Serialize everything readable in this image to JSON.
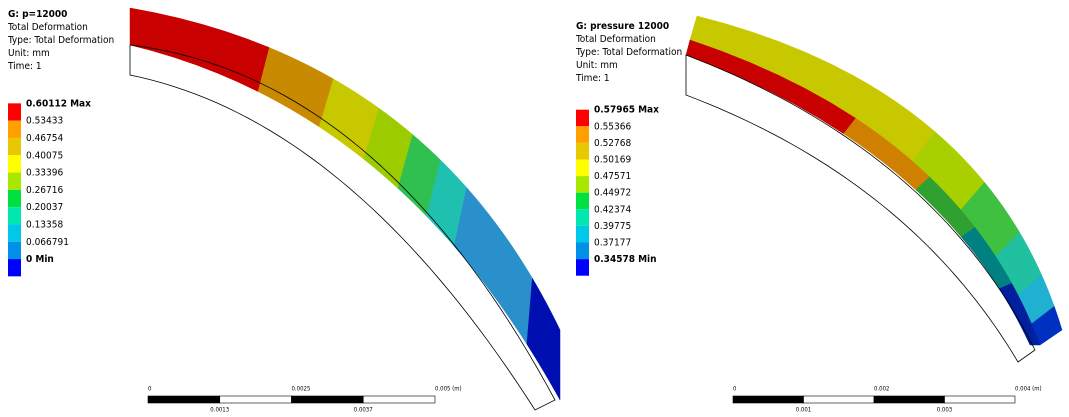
{
  "panels": [
    {
      "title": "G: p=12000",
      "lines": [
        "Total Deformation",
        "Type: Total Deformation",
        "Unit: mm",
        "Time: 1"
      ],
      "legend": [
        "0.60112 Max",
        "0.53433",
        "0.46754",
        "0.40075",
        "0.33396",
        "0.26716",
        "0.20037",
        "0.13358",
        "0.066791",
        "0 Min"
      ],
      "scale_top": [
        "0",
        "0.0025",
        "0.005 (m)"
      ],
      "scale_bottom": [
        "0.0013",
        "0.0037"
      ]
    },
    {
      "title": "G: pressure 12000",
      "lines": [
        "Total Deformation",
        "Type: Total Deformation",
        "Unit: mm",
        "Time: 1"
      ],
      "legend": [
        "0.57965 Max",
        "0.55366",
        "0.52768",
        "0.50169",
        "0.47571",
        "0.44972",
        "0.42374",
        "0.39775",
        "0.37177",
        "0.34578 Min"
      ],
      "scale_top": [
        "0",
        "0.002",
        "0.004 (m)"
      ],
      "scale_bottom": [
        "0.001",
        "0.003"
      ]
    }
  ]
}
